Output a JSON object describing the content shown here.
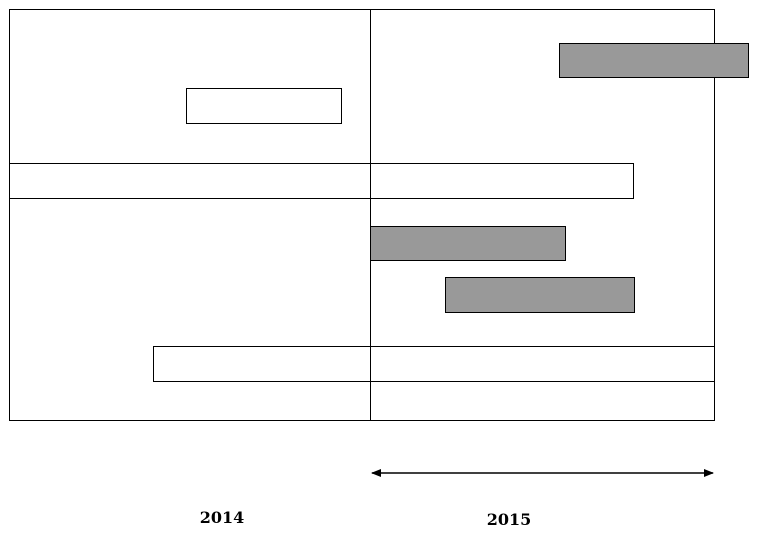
{
  "timeline": {
    "periods": [
      "2014",
      "2015"
    ]
  }
}
